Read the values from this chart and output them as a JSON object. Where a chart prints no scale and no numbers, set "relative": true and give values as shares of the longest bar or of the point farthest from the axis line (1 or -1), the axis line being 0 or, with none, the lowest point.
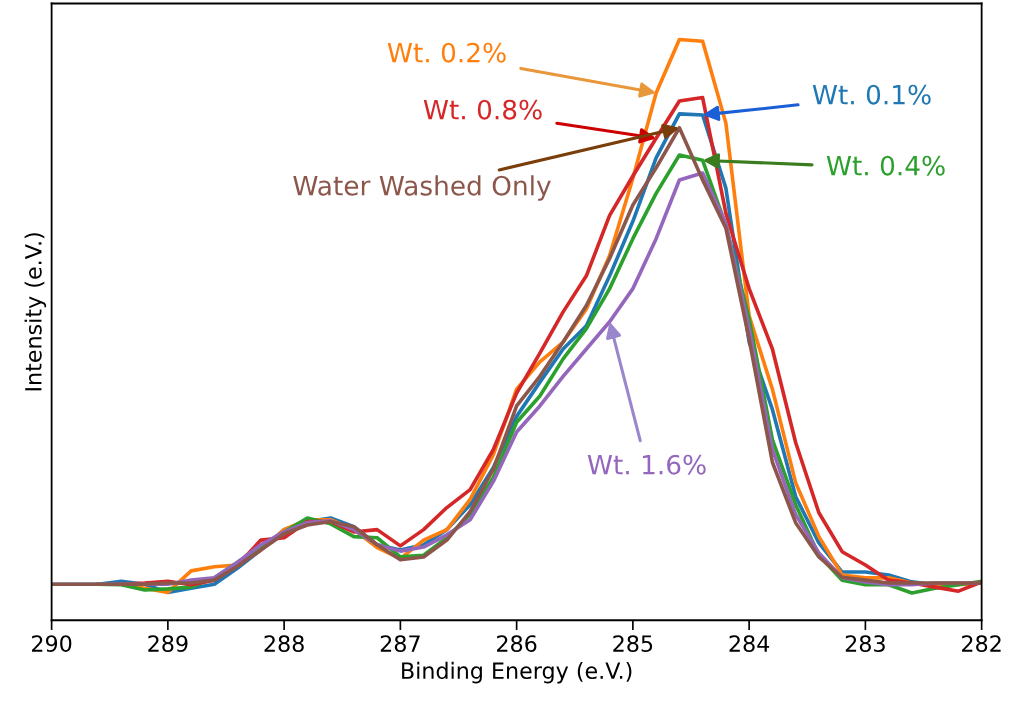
{
  "chart_data": {
    "type": "line",
    "relative": true,
    "xlabel": "Binding Energy (e.V.)",
    "ylabel": "Intensity (e.V.)",
    "xlim": [
      290,
      282
    ],
    "xticks": [
      290,
      289,
      288,
      287,
      286,
      285,
      284,
      283,
      282
    ],
    "grid": false,
    "legend": false,
    "x": [
      290,
      289.8,
      289.6,
      289.4,
      289.2,
      289,
      288.8,
      288.6,
      288.4,
      288.2,
      288,
      287.8,
      287.6,
      287.4,
      287.2,
      287,
      286.8,
      286.6,
      286.4,
      286.2,
      286,
      285.8,
      285.6,
      285.4,
      285.2,
      285,
      284.8,
      284.6,
      284.4,
      284.2,
      284,
      283.8,
      283.6,
      283.4,
      283.2,
      283,
      282.8,
      282.6,
      282.4,
      282.2,
      282
    ],
    "series": [
      {
        "name": "Wt. 0.1%",
        "color": "#1f77b4",
        "values": [
          0.062,
          0.062,
          0.062,
          0.067,
          0.062,
          0.048,
          0.055,
          0.062,
          0.09,
          0.121,
          0.156,
          0.17,
          0.176,
          0.161,
          0.13,
          0.121,
          0.13,
          0.156,
          0.199,
          0.263,
          0.351,
          0.41,
          0.467,
          0.507,
          0.593,
          0.687,
          0.796,
          0.872,
          0.87,
          0.744,
          0.479,
          0.363,
          0.213,
          0.133,
          0.083,
          0.083,
          0.078,
          0.066,
          0.061,
          null,
          null
        ]
      },
      {
        "name": "Wt. 0.2%",
        "color": "#ff7f0e",
        "values": [
          null,
          null,
          null,
          0.062,
          0.055,
          0.048,
          0.085,
          0.092,
          0.095,
          0.121,
          0.156,
          0.173,
          0.173,
          0.156,
          0.125,
          0.106,
          0.138,
          0.156,
          0.208,
          0.285,
          0.398,
          0.445,
          0.479,
          0.536,
          0.628,
          0.761,
          0.908,
          1,
          0.997,
          0.856,
          0.524,
          0.398,
          0.237,
          0.144,
          0.078,
          0.073,
          0.073,
          0.064,
          0.061,
          0.061,
          0.064
        ]
      },
      {
        "name": "Wt. 0.4%",
        "color": "#2ca02c",
        "values": [
          null,
          null,
          0.062,
          0.061,
          0.052,
          0.054,
          0.057,
          0.073,
          0.1,
          0.125,
          0.152,
          0.176,
          0.166,
          0.144,
          0.142,
          0.109,
          0.112,
          0.142,
          0.182,
          0.246,
          0.341,
          0.386,
          0.45,
          0.502,
          0.571,
          0.657,
          0.735,
          0.801,
          0.792,
          0.68,
          0.519,
          0.311,
          0.199,
          0.112,
          0.069,
          0.061,
          0.061,
          0.047,
          0.055,
          0.061,
          0.067
        ]
      },
      {
        "name": "Wt. 0.8%",
        "color": "#d62728",
        "values": [
          null,
          null,
          null,
          0.062,
          0.064,
          0.067,
          0.061,
          0.069,
          0.095,
          0.138,
          0.142,
          0.17,
          0.17,
          0.152,
          0.156,
          0.128,
          0.156,
          0.194,
          0.225,
          0.294,
          0.391,
          0.46,
          0.531,
          0.593,
          0.697,
          0.765,
          0.83,
          0.894,
          0.9,
          0.701,
          0.571,
          0.467,
          0.306,
          0.185,
          0.118,
          0.095,
          0.069,
          0.064,
          0.057,
          0.05,
          0.066
        ]
      },
      {
        "name": "Wt. 1.6%",
        "color": "#9467bd",
        "values": [
          null,
          null,
          0.062,
          0.062,
          0.062,
          0.062,
          0.069,
          0.073,
          0.1,
          0.13,
          0.152,
          0.168,
          0.171,
          0.156,
          0.13,
          0.119,
          0.126,
          0.147,
          0.173,
          0.239,
          0.324,
          0.369,
          0.42,
          0.467,
          0.514,
          0.571,
          0.657,
          0.758,
          0.77,
          0.683,
          0.502,
          0.294,
          0.182,
          0.116,
          0.073,
          0.066,
          0.061,
          0.061,
          0.064,
          0.064,
          0.064
        ]
      },
      {
        "name": "Water Washed Only",
        "color": "#8c564b",
        "values": [
          0.062,
          0.062,
          0.062,
          0.062,
          0.062,
          0.064,
          0.064,
          0.069,
          0.093,
          0.121,
          0.149,
          0.164,
          0.17,
          0.161,
          0.13,
          0.104,
          0.109,
          0.138,
          0.187,
          0.26,
          0.369,
          0.42,
          0.479,
          0.542,
          0.623,
          0.715,
          0.779,
          0.848,
          0.758,
          0.675,
          0.484,
          0.272,
          0.168,
          0.109,
          0.074,
          0.069,
          0.064,
          0.064,
          0.064,
          0.064,
          0.064
        ]
      }
    ]
  }
}
